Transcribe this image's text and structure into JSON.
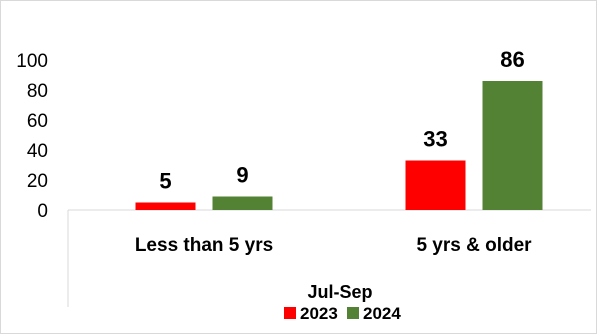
{
  "chart_data": {
    "type": "bar",
    "categories": [
      "Less than 5 yrs",
      "5 yrs & older"
    ],
    "series": [
      {
        "name": "2023",
        "color": "#ff0000",
        "values": [
          5,
          33
        ]
      },
      {
        "name": "2024",
        "color": "#548235",
        "values": [
          9,
          86
        ]
      }
    ],
    "title": "",
    "xlabel": "Jul-Sep",
    "ylabel": "",
    "ylim": [
      0,
      100
    ],
    "yticks": [
      0,
      20,
      40,
      60,
      80,
      100
    ],
    "grid": false,
    "legend": "bottom"
  }
}
